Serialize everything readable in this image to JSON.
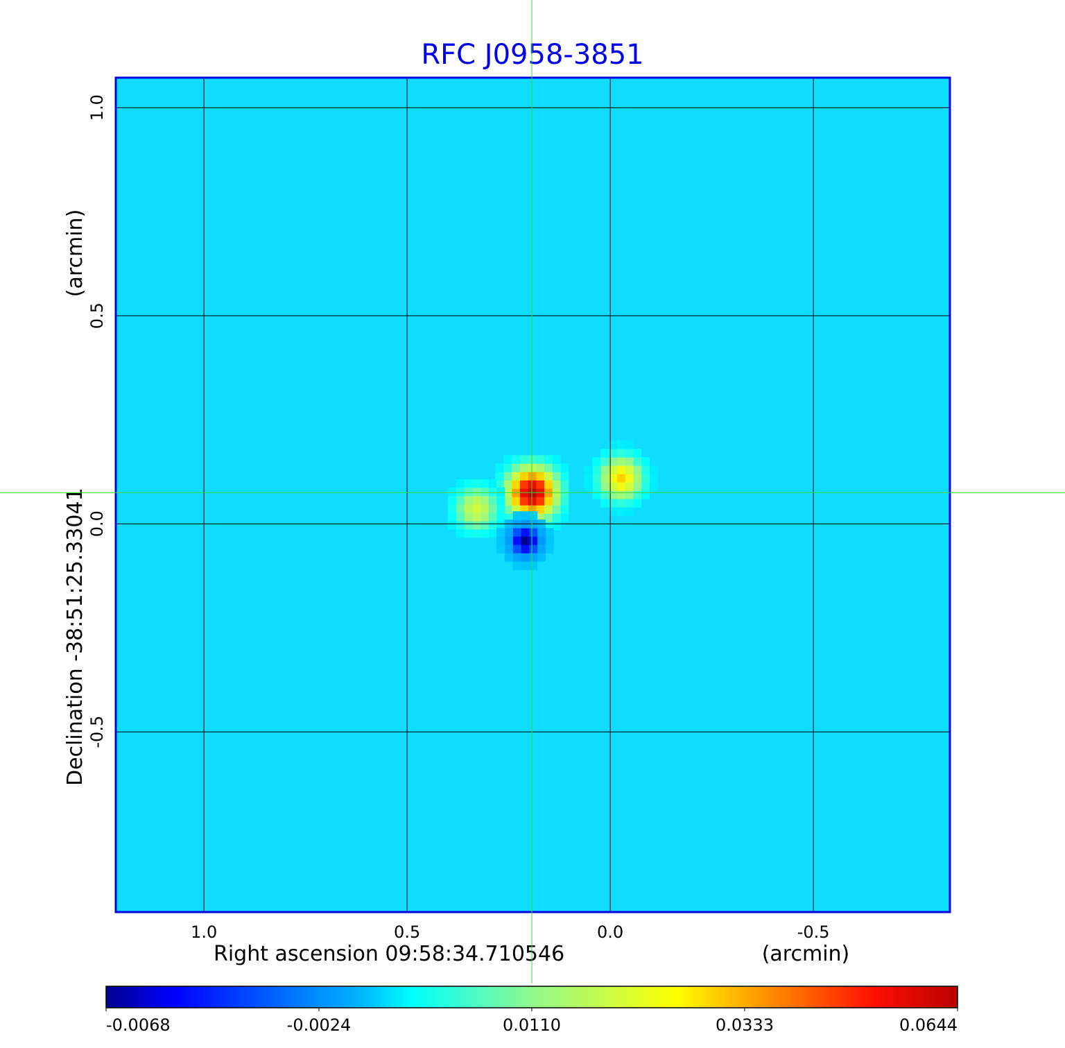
{
  "chart_data": {
    "type": "heatmap",
    "title": "RFC J0958-3851",
    "xlabel": "Right ascension  09:58:34.710546",
    "xunit": "(arcmin)",
    "ylabel": "Declination  -38:51:25.33041",
    "yunit": "(arcmin)",
    "xlim": [
      1.217,
      -0.836
    ],
    "ylim": [
      -0.933,
      1.072
    ],
    "xticks": [
      {
        "value": 1.0,
        "label": "1.0"
      },
      {
        "value": 0.5,
        "label": "0.5"
      },
      {
        "value": 0.0,
        "label": "0.0"
      },
      {
        "value": -0.5,
        "label": "-0.5"
      }
    ],
    "yticks": [
      {
        "value": 1.0,
        "label": "1.0"
      },
      {
        "value": 0.5,
        "label": "0.5"
      },
      {
        "value": 0.0,
        "label": "0.0"
      },
      {
        "value": -0.5,
        "label": "-0.5"
      }
    ],
    "grid": true,
    "crosshair": {
      "ra": 0.193,
      "dec": 0.075
    },
    "background_value": 0.002,
    "features": [
      {
        "ra": 0.193,
        "dec": 0.075,
        "peak": 0.0644,
        "sigma": 0.035
      },
      {
        "ra": -0.026,
        "dec": 0.11,
        "peak": 0.03,
        "sigma": 0.03
      },
      {
        "ra": 0.33,
        "dec": 0.037,
        "peak": 0.02,
        "sigma": 0.03
      },
      {
        "ra": 0.21,
        "dec": -0.04,
        "peak": -0.0068,
        "sigma": 0.03
      }
    ],
    "colorbar": {
      "colormap": "jet",
      "range": [
        -0.0068,
        0.0644
      ],
      "ticks": [
        "-0.0068",
        "-0.0024",
        "0.0110",
        "0.0333",
        "0.0644"
      ],
      "tick_values": [
        -0.0068,
        -0.0024,
        0.011,
        0.0333,
        0.0644
      ]
    },
    "colors": {
      "title": "#0000ee",
      "frame": "#0000dd",
      "crosshair": "#33dd33",
      "grid": "#000000"
    }
  }
}
